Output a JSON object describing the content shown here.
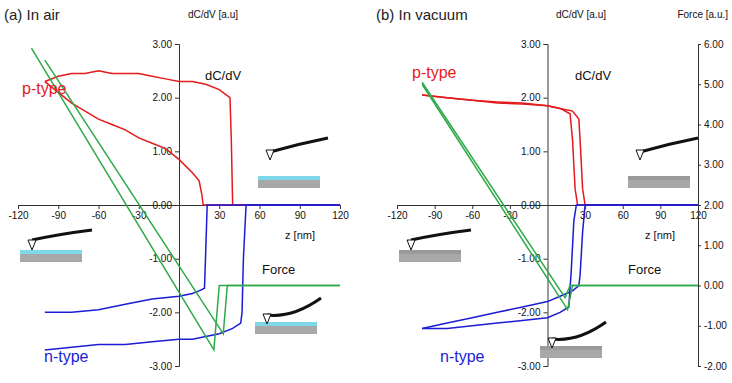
{
  "chart_data": [
    {
      "type": "line",
      "title": "(a) In air",
      "x_label": "z [nm]",
      "y_label": "dC/dV [a.u]",
      "annotations": [
        "dC/dV"
      ],
      "xlim": [
        -120,
        120
      ],
      "xticks": [
        -120,
        -90,
        -60,
        -30,
        30,
        60,
        90,
        120
      ],
      "ylim": [
        -3,
        3
      ],
      "yticks": [
        {
          "value": -3,
          "label": "-3.00"
        },
        {
          "value": -2,
          "label": "-2.00"
        },
        {
          "value": -1,
          "label": "-1.00"
        },
        {
          "value": 0,
          "label": "0.00"
        },
        {
          "value": 1,
          "label": "1.00"
        },
        {
          "value": 2,
          "label": "2.00"
        },
        {
          "value": 3,
          "label": "3.00"
        }
      ],
      "y2lim": [
        -2,
        6
      ],
      "series": [
        {
          "name": "p-type",
          "color": "#e41a1c",
          "axis": "y",
          "curves": [
            {
              "x": [
                120,
                80,
                60,
                42,
                40,
                39,
                38,
                30,
                20,
                10,
                0,
                -10,
                -20,
                -30,
                -40,
                -50,
                -60,
                -70,
                -80,
                -90,
                -100
              ],
              "values": [
                0,
                0,
                0,
                0,
                0,
                1.2,
                2.0,
                2.15,
                2.25,
                2.3,
                2.3,
                2.35,
                2.4,
                2.45,
                2.45,
                2.45,
                2.5,
                2.45,
                2.45,
                2.4,
                2.3
              ]
            },
            {
              "x": [
                -100,
                -90,
                -80,
                -70,
                -60,
                -50,
                -40,
                -30,
                -20,
                -10,
                0,
                10,
                15,
                17,
                18,
                20,
                60,
                120
              ],
              "values": [
                2.3,
                2.1,
                1.9,
                1.75,
                1.6,
                1.5,
                1.4,
                1.25,
                1.15,
                1.05,
                0.85,
                0.6,
                0.45,
                0.2,
                0,
                0,
                0,
                0
              ]
            }
          ]
        },
        {
          "name": "n-type",
          "color": "#1c1cd6",
          "axis": "y",
          "curves": [
            {
              "x": [
                120,
                80,
                50,
                48,
                47,
                46,
                40,
                30,
                20,
                10,
                0,
                -20,
                -40,
                -60,
                -80,
                -100
              ],
              "values": [
                0,
                0,
                0,
                -1.0,
                -2.0,
                -2.2,
                -2.3,
                -2.4,
                -2.45,
                -2.5,
                -2.5,
                -2.55,
                -2.6,
                -2.6,
                -2.65,
                -2.7
              ]
            },
            {
              "x": [
                -100,
                -80,
                -60,
                -40,
                -20,
                0,
                10,
                15,
                19,
                20,
                21,
                60,
                120
              ],
              "values": [
                -2.0,
                -2.0,
                -1.95,
                -1.85,
                -1.75,
                -1.7,
                -1.65,
                -1.6,
                -1.55,
                -0.8,
                0,
                0,
                0
              ]
            }
          ]
        },
        {
          "name": "Force",
          "color": "#2eaa4a",
          "axis": "y2",
          "curves": [
            {
              "x": [
                120,
                30,
                26,
                -110
              ],
              "values": [
                0,
                0,
                -1.6,
                5.9
              ]
            },
            {
              "x": [
                120,
                36,
                33,
                -100
              ],
              "values": [
                0,
                0,
                -1.2,
                5.6
              ]
            }
          ]
        }
      ]
    },
    {
      "type": "line",
      "title": "(b) In vacuum",
      "x_label": "z [nm]",
      "y_label": "dC/dV [a.u]",
      "y2_label": "Force [a.u.]",
      "annotations": [
        "dC/dV"
      ],
      "xlim": [
        -120,
        120
      ],
      "xticks": [
        -120,
        -90,
        -60,
        -30,
        30,
        60,
        90,
        120
      ],
      "ylim": [
        -3,
        3
      ],
      "yticks": [
        {
          "value": -3,
          "label": "-3.00"
        },
        {
          "value": -2,
          "label": "-2.00"
        },
        {
          "value": -1,
          "label": "-1.00"
        },
        {
          "value": 0,
          "label": "0.00"
        },
        {
          "value": 1,
          "label": "1.00"
        },
        {
          "value": 2,
          "label": "2.00"
        },
        {
          "value": 3,
          "label": "3.00"
        }
      ],
      "y2lim": [
        -2,
        6
      ],
      "y2ticks": [
        {
          "value": -2,
          "label": "-2.00"
        },
        {
          "value": -1,
          "label": "-1.00"
        },
        {
          "value": 0,
          "label": "0.00"
        },
        {
          "value": 1,
          "label": "1.00"
        },
        {
          "value": 2,
          "label": "2.00"
        },
        {
          "value": 3,
          "label": "3.00"
        },
        {
          "value": 4,
          "label": "4.00"
        },
        {
          "value": 5,
          "label": "5.00"
        },
        {
          "value": 6,
          "label": "6.00"
        }
      ],
      "series": [
        {
          "name": "p-type",
          "color": "#e41a1c",
          "axis": "y",
          "curves": [
            {
              "x": [
                120,
                60,
                30,
                28,
                26,
                25,
                20,
                10,
                0,
                -20,
                -40,
                -60,
                -80,
                -100
              ],
              "values": [
                0,
                0,
                0,
                0.3,
                1.2,
                1.6,
                1.75,
                1.8,
                1.85,
                1.9,
                1.92,
                1.95,
                2.0,
                2.05
              ]
            },
            {
              "x": [
                -100,
                -80,
                -60,
                -40,
                -20,
                0,
                10,
                18,
                20,
                22,
                24,
                60,
                120
              ],
              "values": [
                2.05,
                2.0,
                1.95,
                1.9,
                1.88,
                1.85,
                1.8,
                1.7,
                1.2,
                0.3,
                0,
                0,
                0
              ]
            }
          ]
        },
        {
          "name": "n-type",
          "color": "#1c1cd6",
          "axis": "y",
          "curves": [
            {
              "x": [
                120,
                60,
                30,
                28,
                26,
                25,
                20,
                10,
                0,
                -20,
                -40,
                -60,
                -80,
                -100
              ],
              "values": [
                0,
                0,
                0,
                -0.5,
                -1.3,
                -1.5,
                -1.6,
                -1.7,
                -1.8,
                -1.9,
                -2.0,
                -2.1,
                -2.2,
                -2.3
              ]
            },
            {
              "x": [
                -100,
                -80,
                -60,
                -40,
                -20,
                0,
                10,
                17,
                19,
                21,
                23,
                60,
                120
              ],
              "values": [
                -2.3,
                -2.3,
                -2.25,
                -2.2,
                -2.15,
                -2.1,
                -2.0,
                -1.9,
                -1.2,
                -0.3,
                0,
                0,
                0
              ]
            }
          ]
        },
        {
          "name": "Force",
          "color": "#2eaa4a",
          "axis": "y2",
          "curves": [
            {
              "x": [
                120,
                20,
                16,
                -100
              ],
              "values": [
                0,
                0,
                -0.6,
                5.0
              ]
            },
            {
              "x": [
                120,
                18,
                14,
                -100
              ],
              "values": [
                0,
                0,
                -0.3,
                5.05
              ]
            }
          ]
        }
      ]
    }
  ]
}
